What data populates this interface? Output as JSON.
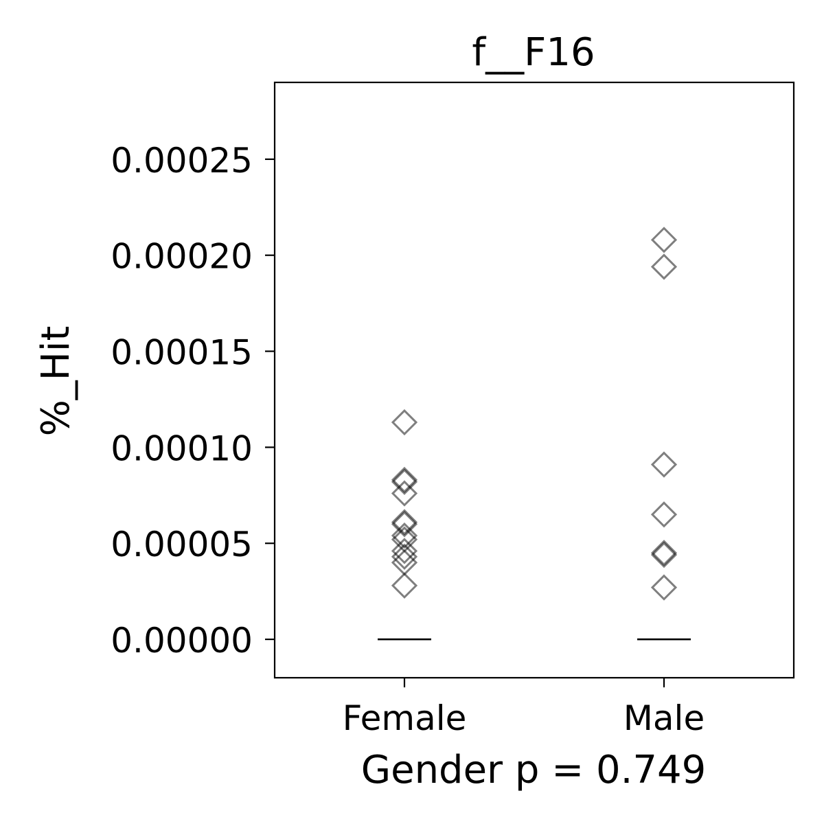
{
  "chart_data": {
    "type": "scatter",
    "title": "f__F16",
    "xlabel": "Gender p = 0.749",
    "ylabel": "%_Hit",
    "categories": [
      "Female",
      "Male"
    ],
    "ylim": [
      -2e-05,
      0.00029
    ],
    "yticks": [
      "0.00000",
      "0.00005",
      "0.00010",
      "0.00015",
      "0.00020",
      "0.00025"
    ],
    "ytick_values": [
      0.0,
      5e-05,
      0.0001,
      0.00015,
      0.0002,
      0.00025
    ],
    "grid": false,
    "marker": "diamond-open",
    "marker_color": "#000000",
    "marker_alpha": 0.5,
    "median_line_value": 0.0,
    "series": [
      {
        "category": "Female",
        "values": [
          0.000113,
          8.3e-05,
          8.2e-05,
          7.6e-05,
          6.1e-05,
          6e-05,
          5.4e-05,
          5.2e-05,
          4.6e-05,
          4.3e-05,
          4e-05,
          2.8e-05
        ]
      },
      {
        "category": "Male",
        "values": [
          0.000208,
          0.000194,
          9.1e-05,
          6.5e-05,
          4.5e-05,
          4.4e-05,
          2.7e-05
        ]
      }
    ]
  }
}
